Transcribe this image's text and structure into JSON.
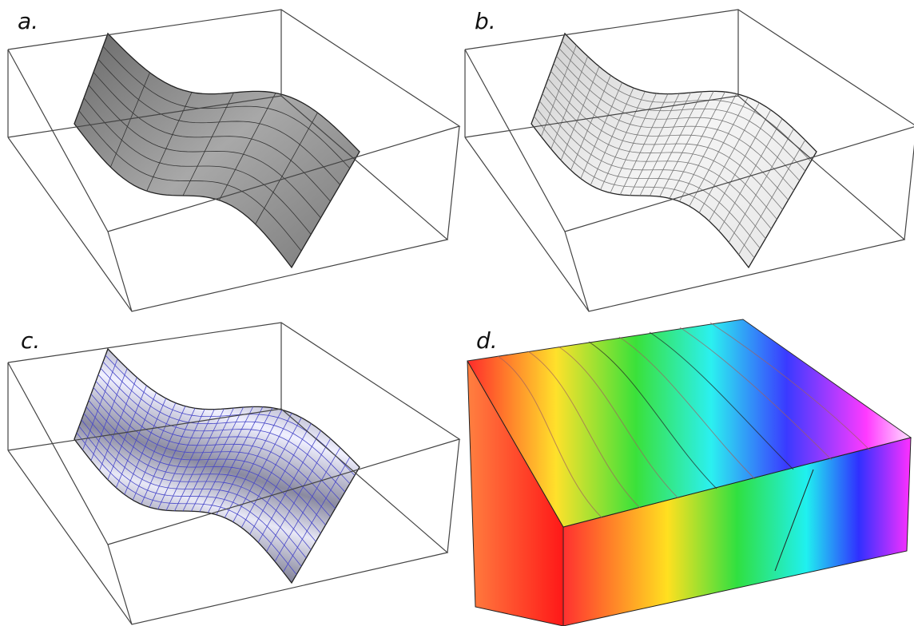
{
  "panels": [
    {
      "label": "a."
    },
    {
      "label": "b."
    },
    {
      "label": "c."
    },
    {
      "label": "d."
    }
  ]
}
